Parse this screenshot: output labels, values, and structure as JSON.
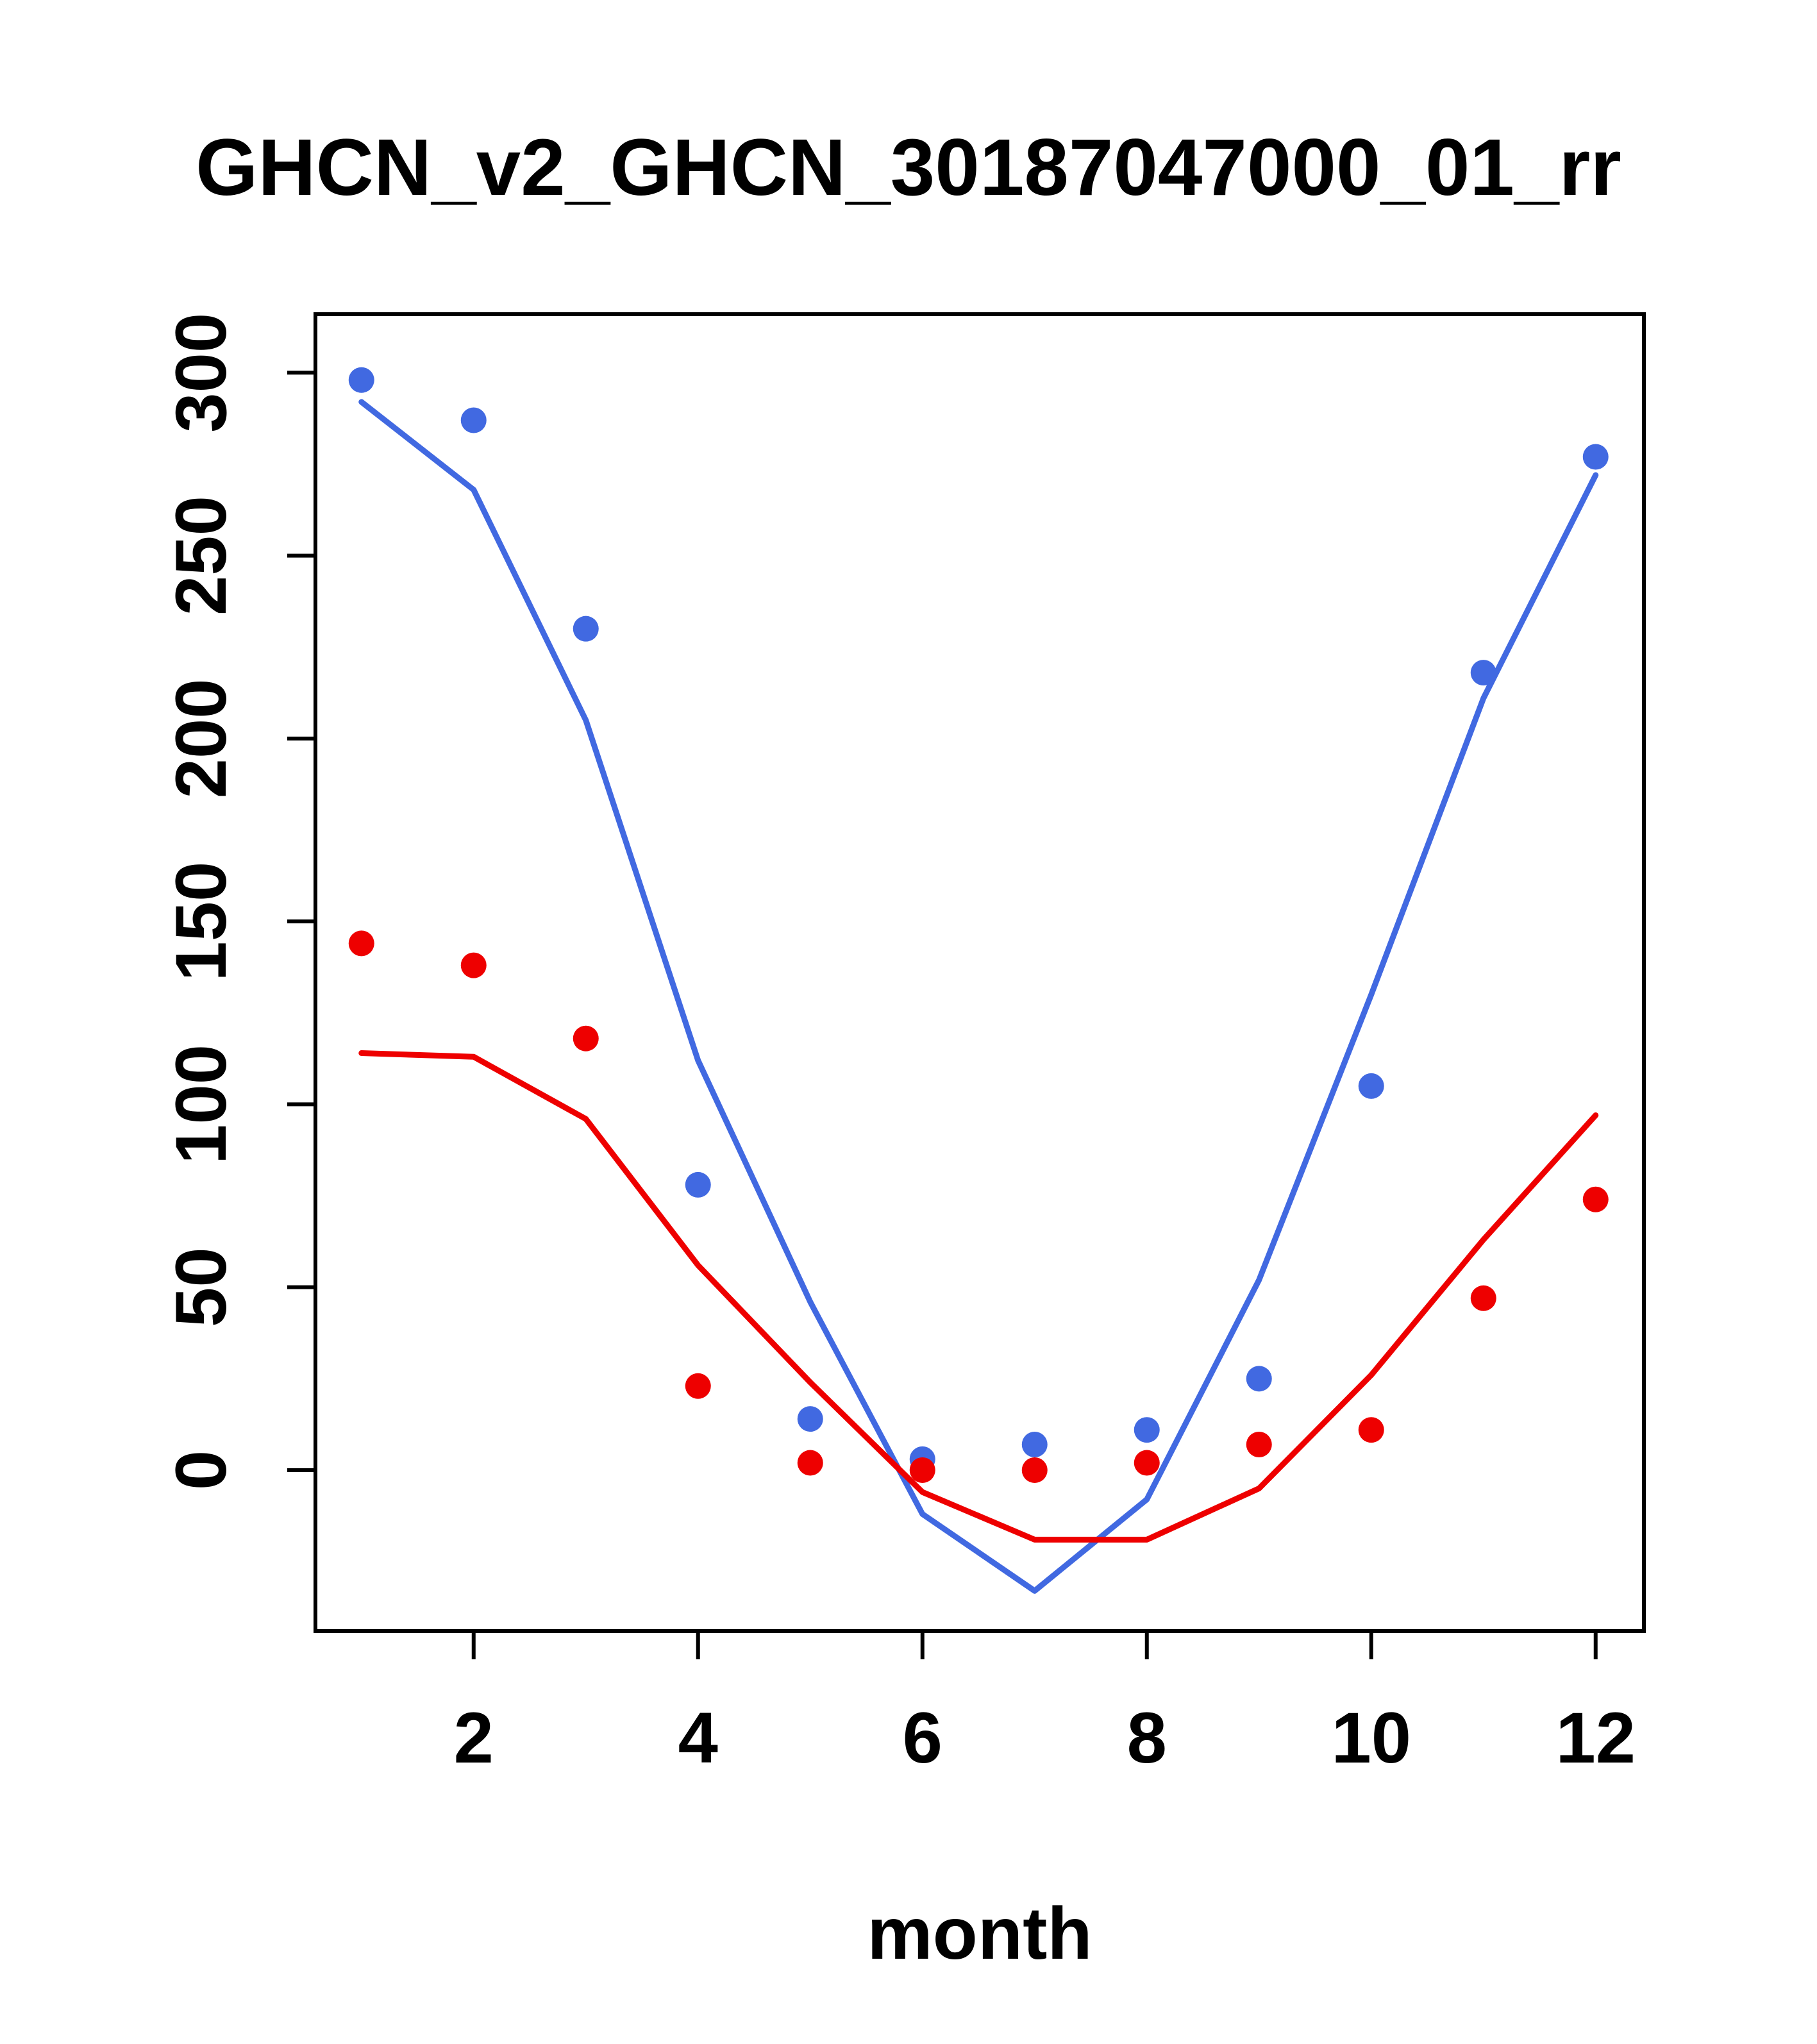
{
  "chart_data": {
    "type": "line",
    "title": "GHCN_v2_GHCN_30187047000_01_rr",
    "xlabel": "month",
    "ylabel": "",
    "x": [
      1,
      2,
      3,
      4,
      5,
      6,
      7,
      8,
      9,
      10,
      11,
      12
    ],
    "xticks": [
      2,
      4,
      6,
      8,
      10,
      12
    ],
    "yticks": [
      0,
      50,
      100,
      150,
      200,
      250,
      300
    ],
    "xlim": [
      0.59,
      12.43
    ],
    "ylim": [
      -44,
      316
    ],
    "grid": false,
    "legend": "none",
    "colors": {
      "blue": "#4169E1",
      "red": "#EE0000",
      "axis": "#000000"
    },
    "series": [
      {
        "id": "blue-line",
        "name": "blue fitted line",
        "type": "line",
        "color": "#4169E1",
        "values": [
          292,
          268,
          205,
          112,
          46,
          -12,
          -33,
          -8,
          52,
          130,
          211,
          272
        ]
      },
      {
        "id": "red-line",
        "name": "red fitted line",
        "type": "line",
        "color": "#EE0000",
        "values": [
          114,
          113,
          96,
          56,
          24,
          -6,
          -19,
          -19,
          -5,
          26,
          63,
          97
        ]
      },
      {
        "id": "blue-points",
        "name": "blue monthly points",
        "type": "scatter",
        "color": "#4169E1",
        "values": [
          298,
          287,
          230,
          78,
          14,
          3,
          7,
          11,
          25,
          105,
          218,
          277
        ]
      },
      {
        "id": "red-points",
        "name": "red monthly points",
        "type": "scatter",
        "color": "#EE0000",
        "values": [
          144,
          138,
          118,
          23,
          2,
          0,
          0,
          2,
          7,
          11,
          47,
          74
        ]
      }
    ]
  }
}
